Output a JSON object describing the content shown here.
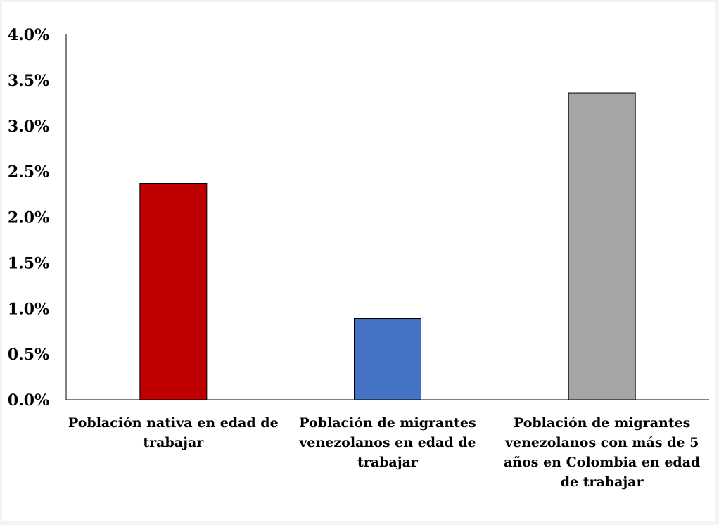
{
  "chart_data": {
    "type": "bar",
    "title": "",
    "xlabel": "",
    "ylabel": "",
    "ylim": [
      0,
      4.0
    ],
    "yticks": [
      "0.0%",
      "0.5%",
      "1.0%",
      "1.5%",
      "2.0%",
      "2.5%",
      "3.0%",
      "3.5%",
      "4.0%"
    ],
    "grid": false,
    "categories": [
      [
        "Población nativa en edad de",
        "trabajar"
      ],
      [
        "Población de migrantes",
        "venezolanos en edad de",
        "trabajar"
      ],
      [
        "Población de migrantes",
        "venezolanos con más de 5",
        "años en Colombia en edad",
        "de trabajar"
      ]
    ],
    "values": [
      2.37,
      0.89,
      3.36
    ],
    "colors": [
      "#c00000",
      "#4472c4",
      "#a5a5a5"
    ]
  }
}
